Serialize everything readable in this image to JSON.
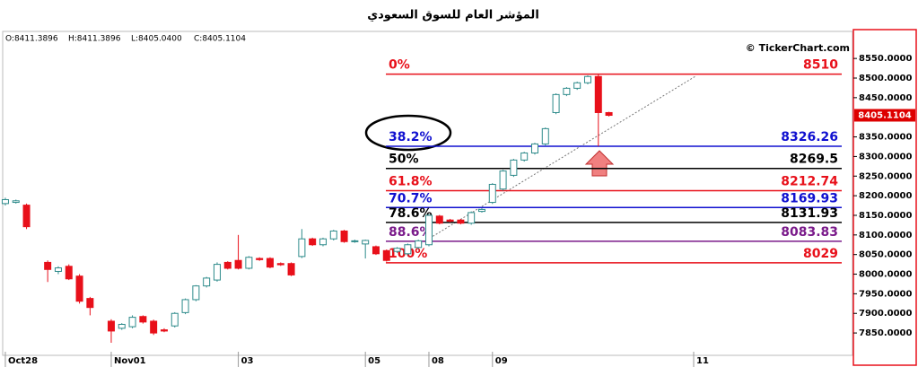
{
  "chart_data": {
    "type": "candlestick",
    "title": "المؤشر العام للسوق السعودي",
    "ohlc_text": [
      "O:8411.3896",
      "H:8411.3896",
      "L:8405.0400",
      "C:8405.1104"
    ],
    "watermark": "© TickerChart.com",
    "up_color": "#2e8b8b",
    "down_color": "#e8101a",
    "x": [
      0,
      1,
      2,
      4,
      5,
      6,
      7,
      8,
      10,
      11,
      12,
      13,
      14,
      15,
      16,
      17,
      18,
      19,
      20,
      21,
      22,
      23,
      24,
      25,
      26,
      27,
      28,
      29,
      30,
      31,
      32,
      33,
      34,
      35,
      36,
      37,
      38,
      39,
      40,
      41,
      42,
      43,
      44,
      45,
      46,
      47,
      48,
      49,
      50,
      51,
      52,
      53,
      54,
      55,
      56,
      57
    ],
    "open": [
      8180,
      8183,
      8176,
      8030,
      8007,
      8020,
      7995,
      7938,
      7880,
      7862,
      7866,
      7892,
      7880,
      7858,
      7868,
      7902,
      7935,
      7970,
      7985,
      8030,
      8035,
      8015,
      8040,
      8040,
      8027,
      8027,
      8045,
      8090,
      8075,
      8090,
      8110,
      8083,
      8077,
      8070,
      8060,
      8058,
      8052,
      8068,
      8075,
      8148,
      8138,
      8138,
      8130,
      8160,
      8183,
      8217,
      8252,
      8291,
      8309,
      8332,
      8412,
      8458,
      8474,
      8488,
      8504,
      8412
    ],
    "high": [
      8195,
      8190,
      8180,
      8035,
      8020,
      8025,
      8000,
      7942,
      7885,
      7875,
      7895,
      7895,
      7884,
      7862,
      7903,
      7938,
      7972,
      7993,
      8030,
      8033,
      8100,
      8046,
      8043,
      8043,
      8030,
      8030,
      8115,
      8093,
      8093,
      8113,
      8113,
      8088,
      8088,
      8073,
      8063,
      8069,
      8078,
      8088,
      8153,
      8151,
      8141,
      8141,
      8160,
      8168,
      8232,
      8266,
      8294,
      8312,
      8335,
      8374,
      8461,
      8477,
      8491,
      8507,
      8510,
      8414
    ],
    "low": [
      8175,
      8180,
      8115,
      7980,
      8000,
      7985,
      7925,
      7895,
      7825,
      7858,
      7862,
      7874,
      7845,
      7852,
      7864,
      7898,
      7931,
      7966,
      7981,
      8012,
      8012,
      8012,
      8034,
      8015,
      8021,
      7995,
      8041,
      8072,
      8071,
      8086,
      8080,
      8080,
      8040,
      8049,
      8032,
      8054,
      8048,
      8064,
      8071,
      8127,
      8132,
      8127,
      8126,
      8157,
      8179,
      8213,
      8248,
      8287,
      8305,
      8328,
      8408,
      8454,
      8470,
      8484,
      8326,
      8402
    ],
    "close": [
      8190,
      8187,
      8121,
      8012,
      8016,
      7988,
      7931,
      7915,
      7855,
      7872,
      7890,
      7878,
      7850,
      7855,
      7900,
      7935,
      7970,
      7990,
      8025,
      8015,
      8015,
      8043,
      8037,
      8018,
      8024,
      7998,
      8090,
      8075,
      8090,
      8110,
      8083,
      8085,
      8086,
      8052,
      8035,
      8066,
      8075,
      8085,
      8150,
      8130,
      8135,
      8130,
      8157,
      8165,
      8229,
      8263,
      8291,
      8309,
      8332,
      8371,
      8458,
      8474,
      8488,
      8504,
      8412,
      8405
    ],
    "xlim": [
      -0.25,
      80
    ],
    "xticks": [
      {
        "value": 0,
        "label": "Oct28"
      },
      {
        "value": 10,
        "label": "Nov01"
      },
      {
        "value": 22,
        "label": "03"
      },
      {
        "value": 34,
        "label": "05"
      },
      {
        "value": 40,
        "label": "08"
      },
      {
        "value": 46,
        "label": "09"
      },
      {
        "value": 65,
        "label": "11"
      }
    ],
    "ylim": [
      7793,
      8619
    ],
    "yticks": [
      {
        "value": 7850,
        "label": "7850.0000"
      },
      {
        "value": 7900,
        "label": "7900.0000"
      },
      {
        "value": 7950,
        "label": "7950.0000"
      },
      {
        "value": 8000,
        "label": "8000.0000"
      },
      {
        "value": 8050,
        "label": "8050.0000"
      },
      {
        "value": 8100,
        "label": "8100.0000"
      },
      {
        "value": 8150,
        "label": "8150.0000"
      },
      {
        "value": 8200,
        "label": "8200.0000"
      },
      {
        "value": 8250,
        "label": "8250.0000"
      },
      {
        "value": 8300,
        "label": "8300.0000"
      },
      {
        "value": 8350,
        "label": "8350.0000"
      },
      {
        "value": 8450,
        "label": "8450.0000"
      },
      {
        "value": 8500,
        "label": "8500.0000"
      },
      {
        "value": 8550,
        "label": "8550.0000"
      }
    ],
    "last_price": 8405.1104,
    "fib_levels": [
      {
        "label": "0%",
        "value": 8510,
        "color": "#e8101a"
      },
      {
        "label": "38.2%",
        "value": 8326.26,
        "color": "#1010d0"
      },
      {
        "label": "50%",
        "value": 8269.5,
        "color": "#000000"
      },
      {
        "label": "61.8%",
        "value": 8212.74,
        "color": "#e8101a"
      },
      {
        "label": "70.7%",
        "value": 8169.93,
        "color": "#1010d0"
      },
      {
        "label": "78.6%",
        "value": 8131.93,
        "color": "#000000"
      },
      {
        "label": "88.6%",
        "value": 8083.83,
        "color": "#7a1a8a"
      },
      {
        "label": "100%",
        "value": 8029,
        "color": "#e8101a"
      }
    ]
  }
}
